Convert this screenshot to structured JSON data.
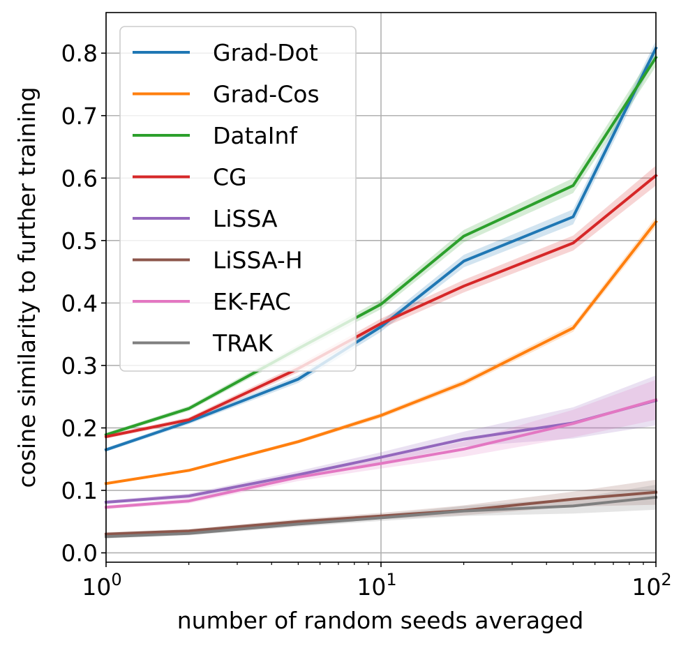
{
  "chart_data": {
    "type": "line",
    "xscale": "log",
    "x": [
      1,
      2,
      5,
      10,
      20,
      50,
      100
    ],
    "xlim": [
      1,
      100
    ],
    "ylim": [
      -0.015,
      0.865
    ],
    "xlabel": "number of random seeds averaged",
    "ylabel": "cosine similarity to further training",
    "xticks": [
      {
        "value": 1,
        "base": "10",
        "exp": "0"
      },
      {
        "value": 10,
        "base": "10",
        "exp": "1"
      },
      {
        "value": 100,
        "base": "10",
        "exp": "2"
      }
    ],
    "yticks": [
      {
        "value": 0.0,
        "label": "0.0"
      },
      {
        "value": 0.1,
        "label": "0.1"
      },
      {
        "value": 0.2,
        "label": "0.2"
      },
      {
        "value": 0.3,
        "label": "0.3"
      },
      {
        "value": 0.4,
        "label": "0.4"
      },
      {
        "value": 0.5,
        "label": "0.5"
      },
      {
        "value": 0.6,
        "label": "0.6"
      },
      {
        "value": 0.7,
        "label": "0.7"
      },
      {
        "value": 0.8,
        "label": "0.8"
      }
    ],
    "grid": true,
    "legend_position": "top-left",
    "series": [
      {
        "name": "Grad-Dot",
        "color": "#1f77b4",
        "values": [
          0.165,
          0.21,
          0.278,
          0.362,
          0.467,
          0.538,
          0.808
        ],
        "band": [
          0.003,
          0.004,
          0.006,
          0.008,
          0.01,
          0.012,
          0.012
        ]
      },
      {
        "name": "Grad-Cos",
        "color": "#ff7f0e",
        "values": [
          0.111,
          0.132,
          0.178,
          0.22,
          0.272,
          0.36,
          0.53
        ],
        "band": [
          0.002,
          0.002,
          0.003,
          0.004,
          0.005,
          0.006,
          0.008
        ]
      },
      {
        "name": "DataInf",
        "color": "#2ca02c",
        "values": [
          0.189,
          0.231,
          0.327,
          0.398,
          0.507,
          0.588,
          0.793
        ],
        "band": [
          0.003,
          0.004,
          0.006,
          0.008,
          0.01,
          0.012,
          0.014
        ]
      },
      {
        "name": "CG",
        "color": "#d62728",
        "values": [
          0.186,
          0.213,
          0.295,
          0.367,
          0.427,
          0.496,
          0.604
        ],
        "band": [
          0.003,
          0.004,
          0.006,
          0.008,
          0.01,
          0.012,
          0.016
        ]
      },
      {
        "name": "LiSSA",
        "color": "#9467bd",
        "values": [
          0.081,
          0.091,
          0.125,
          0.153,
          0.182,
          0.208,
          0.244
        ],
        "band": [
          0.003,
          0.004,
          0.006,
          0.008,
          0.012,
          0.025,
          0.04
        ]
      },
      {
        "name": "LiSSA-H",
        "color": "#8c564b",
        "values": [
          0.03,
          0.035,
          0.05,
          0.059,
          0.068,
          0.086,
          0.097
        ],
        "band": [
          0.003,
          0.003,
          0.004,
          0.005,
          0.008,
          0.012,
          0.02
        ]
      },
      {
        "name": "EK-FAC",
        "color": "#e377c2",
        "values": [
          0.073,
          0.083,
          0.121,
          0.143,
          0.166,
          0.207,
          0.245
        ],
        "band": [
          0.003,
          0.004,
          0.006,
          0.008,
          0.012,
          0.022,
          0.032
        ]
      },
      {
        "name": "TRAK",
        "color": "#7f7f7f",
        "values": [
          0.026,
          0.031,
          0.046,
          0.056,
          0.067,
          0.075,
          0.089
        ],
        "band": [
          0.003,
          0.003,
          0.004,
          0.005,
          0.008,
          0.012,
          0.02
        ]
      }
    ]
  }
}
